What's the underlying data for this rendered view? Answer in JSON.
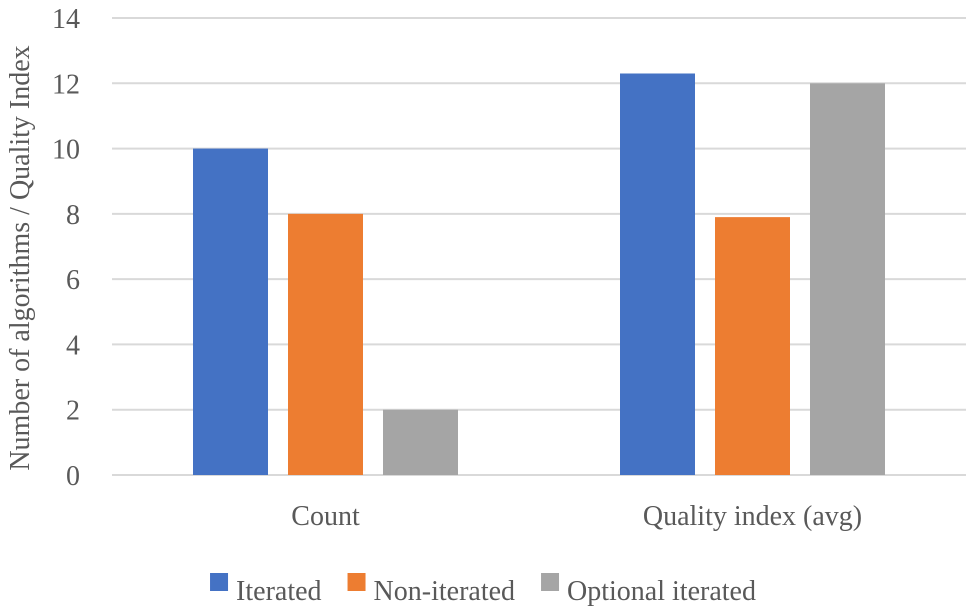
{
  "chart_data": {
    "type": "bar",
    "title": "",
    "xlabel": "",
    "ylabel": "Number of algorithms / Quality Index",
    "categories": [
      "Count",
      "Quality index (avg)"
    ],
    "series": [
      {
        "name": "Iterated",
        "color": "#4472c4",
        "values": [
          10,
          12.3
        ]
      },
      {
        "name": "Non-iterated",
        "color": "#ed7d31",
        "values": [
          8,
          7.9
        ]
      },
      {
        "name": "Optional iterated",
        "color": "#a5a5a5",
        "values": [
          2,
          12
        ]
      }
    ],
    "ylim": [
      0,
      14
    ],
    "yticks": [
      0,
      2,
      4,
      6,
      8,
      10,
      12,
      14
    ],
    "grid": true,
    "legend_position": "bottom"
  }
}
